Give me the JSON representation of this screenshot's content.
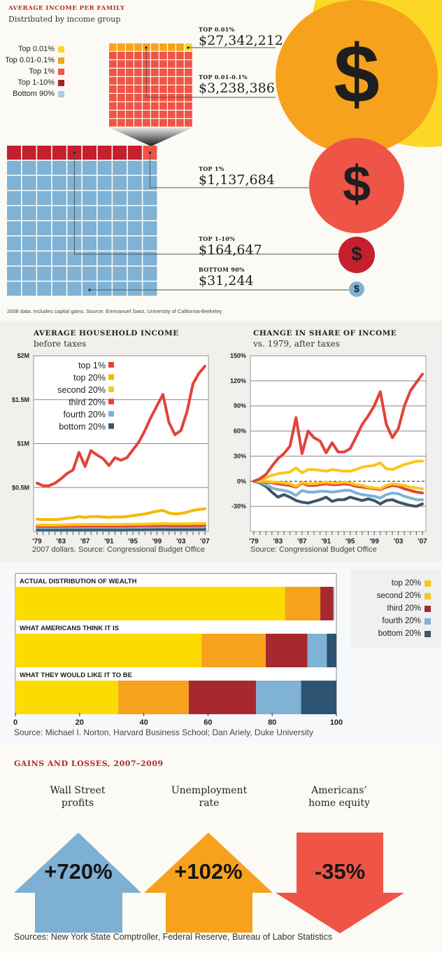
{
  "section1": {
    "title": "AVERAGE INCOME PER FAMILY",
    "subtitle": "Distributed by income group",
    "legend": [
      {
        "label": "Top 0.01%",
        "color": "#fbd826"
      },
      {
        "label": "Top 0.01-0.1%",
        "color": "#f7a21c"
      },
      {
        "label": "Top 1%",
        "color": "#ef5547"
      },
      {
        "label": "Top 1-10%",
        "color": "#b8202d"
      },
      {
        "label": "Bottom 90%",
        "color": "#7fb2d4"
      }
    ],
    "groups": [
      {
        "kicker": "TOP 0.01%",
        "value": "$27,342,212",
        "color": "#fbd826",
        "icon": "dollar-icon"
      },
      {
        "kicker": "TOP 0.01-0.1%",
        "value": "$3,238,386",
        "color": "#f7a21c",
        "icon": "dollar-icon"
      },
      {
        "kicker": "TOP 1%",
        "value": "$1,137,684",
        "color": "#ef5547",
        "icon": "dollar-icon"
      },
      {
        "kicker": "TOP 1-10%",
        "value": "$164,647",
        "color": "#c4202d",
        "icon": "dollar-icon"
      },
      {
        "kicker": "BOTTOM 90%",
        "value": "$31,244",
        "color": "#7fb2d4",
        "icon": "dollar-icon"
      }
    ],
    "dollar_glyph": "$",
    "caption": "2008 data. Includes capital gains. Source: Emmanuel Saez, University of California-Berkeley"
  },
  "chart_data": [
    {
      "type": "line",
      "title": "AVERAGE HOUSEHOLD INCOME",
      "subtitle": "before taxes",
      "caption": "2007 dollars. Source: Congressional Budget Office",
      "xlabel": "",
      "ylabel": "",
      "x": [
        1979,
        1980,
        1981,
        1982,
        1983,
        1984,
        1985,
        1986,
        1987,
        1988,
        1989,
        1990,
        1991,
        1992,
        1993,
        1994,
        1995,
        1996,
        1997,
        1998,
        1999,
        2000,
        2001,
        2002,
        2003,
        2004,
        2005,
        2006,
        2007
      ],
      "xticks": [
        "'79",
        "'83",
        "'87",
        "'91",
        "'95",
        "'99",
        "'03",
        "'07"
      ],
      "xtick_years": [
        1979,
        1983,
        1987,
        1991,
        1995,
        1999,
        2003,
        2007
      ],
      "yticks": [
        "$0.5M",
        "$1M",
        "$1.5M",
        "$2M"
      ],
      "ytick_values": [
        0.5,
        1,
        1.5,
        2
      ],
      "ylim": [
        0,
        2
      ],
      "grid": true,
      "legend_position": "top-left",
      "series": [
        {
          "name": "top 1%",
          "color": "#e0443a",
          "values": [
            0.55,
            0.52,
            0.52,
            0.55,
            0.6,
            0.66,
            0.7,
            0.9,
            0.74,
            0.92,
            0.87,
            0.83,
            0.75,
            0.84,
            0.81,
            0.84,
            0.93,
            1.02,
            1.15,
            1.3,
            1.43,
            1.56,
            1.24,
            1.1,
            1.15,
            1.36,
            1.68,
            1.8,
            1.88
          ]
        },
        {
          "name": "top 20%",
          "color": "#f5b800",
          "values": [
            0.14,
            0.135,
            0.135,
            0.135,
            0.14,
            0.15,
            0.155,
            0.17,
            0.16,
            0.17,
            0.17,
            0.165,
            0.16,
            0.165,
            0.165,
            0.17,
            0.18,
            0.19,
            0.2,
            0.215,
            0.23,
            0.24,
            0.21,
            0.2,
            0.205,
            0.22,
            0.24,
            0.25,
            0.26
          ]
        },
        {
          "name": "second 20%",
          "color": "#fcc619",
          "values": [
            0.075,
            0.074,
            0.074,
            0.074,
            0.075,
            0.077,
            0.078,
            0.08,
            0.079,
            0.08,
            0.08,
            0.08,
            0.079,
            0.08,
            0.08,
            0.081,
            0.082,
            0.083,
            0.084,
            0.086,
            0.088,
            0.09,
            0.088,
            0.087,
            0.087,
            0.088,
            0.089,
            0.09,
            0.09
          ]
        },
        {
          "name": "third 20%",
          "color": "#e0443a",
          "values": [
            0.06,
            0.059,
            0.059,
            0.059,
            0.06,
            0.061,
            0.062,
            0.063,
            0.062,
            0.063,
            0.063,
            0.063,
            0.062,
            0.062,
            0.062,
            0.063,
            0.064,
            0.065,
            0.066,
            0.067,
            0.068,
            0.069,
            0.068,
            0.067,
            0.067,
            0.067,
            0.068,
            0.068,
            0.069
          ]
        },
        {
          "name": "fourth 20%",
          "color": "#7fb2d4",
          "values": [
            0.045,
            0.044,
            0.044,
            0.044,
            0.045,
            0.046,
            0.046,
            0.047,
            0.046,
            0.047,
            0.047,
            0.047,
            0.046,
            0.046,
            0.046,
            0.047,
            0.048,
            0.048,
            0.049,
            0.05,
            0.051,
            0.051,
            0.05,
            0.05,
            0.05,
            0.05,
            0.05,
            0.051,
            0.051
          ]
        },
        {
          "name": "bottom 20%",
          "color": "#3d5468",
          "values": [
            0.02,
            0.02,
            0.02,
            0.019,
            0.019,
            0.02,
            0.02,
            0.02,
            0.02,
            0.02,
            0.021,
            0.021,
            0.02,
            0.02,
            0.02,
            0.021,
            0.022,
            0.022,
            0.023,
            0.023,
            0.024,
            0.024,
            0.023,
            0.023,
            0.023,
            0.023,
            0.024,
            0.024,
            0.024
          ]
        }
      ]
    },
    {
      "type": "line",
      "title": "CHANGE IN SHARE OF INCOME",
      "subtitle": "vs. 1979, after taxes",
      "caption": "Source: Congressional Budget Office",
      "xlabel": "",
      "ylabel": "",
      "x": [
        1979,
        1980,
        1981,
        1982,
        1983,
        1984,
        1985,
        1986,
        1987,
        1988,
        1989,
        1990,
        1991,
        1992,
        1993,
        1994,
        1995,
        1996,
        1997,
        1998,
        1999,
        2000,
        2001,
        2002,
        2003,
        2004,
        2005,
        2006,
        2007
      ],
      "xticks": [
        "'79",
        "'83",
        "'87",
        "'91",
        "'95",
        "'99",
        "'03",
        "'07"
      ],
      "xtick_years": [
        1979,
        1983,
        1987,
        1991,
        1995,
        1999,
        2003,
        2007
      ],
      "yticks": [
        "-30%",
        "0%",
        "30%",
        "60%",
        "90%",
        "120%",
        "150%"
      ],
      "ytick_values": [
        -30,
        0,
        30,
        60,
        90,
        120,
        150
      ],
      "ylim": [
        -60,
        150
      ],
      "grid": true,
      "zero_line": "dashed",
      "series": [
        {
          "name": "top 1%",
          "color": "#e0443a",
          "values": [
            0,
            3,
            8,
            18,
            27,
            33,
            42,
            76,
            33,
            60,
            52,
            48,
            34,
            46,
            35,
            35,
            39,
            53,
            68,
            78,
            90,
            107,
            68,
            52,
            63,
            90,
            108,
            118,
            128
          ]
        },
        {
          "name": "top 20%",
          "color": "#fcc619",
          "values": [
            0,
            2,
            4,
            7,
            9,
            10,
            11,
            16,
            10,
            14,
            14,
            13,
            12,
            14,
            13,
            12,
            12,
            14,
            17,
            18,
            19,
            22,
            15,
            14,
            17,
            20,
            22,
            24,
            24
          ]
        },
        {
          "name": "second 20%",
          "color": "#fcc619",
          "values": [
            0,
            0,
            0,
            -1,
            -1,
            -2,
            -3,
            -6,
            -1,
            -3,
            -3,
            -2,
            -1,
            -2,
            -2,
            -1,
            -2,
            -4,
            -5,
            -7,
            -8,
            -9,
            -5,
            -3,
            -4,
            -5,
            -7,
            -8,
            -9
          ]
        },
        {
          "name": "third 20%",
          "color": "#e0443a",
          "values": [
            0,
            0,
            -1,
            -2,
            -3,
            -4,
            -5,
            -7,
            -2,
            -5,
            -5,
            -4,
            -3,
            -4,
            -4,
            -3,
            -4,
            -6,
            -7,
            -8,
            -9,
            -10,
            -7,
            -5,
            -6,
            -9,
            -11,
            -13,
            -14
          ]
        },
        {
          "name": "fourth 20%",
          "color": "#7fb2d4",
          "values": [
            0,
            -1,
            -4,
            -8,
            -10,
            -11,
            -13,
            -17,
            -11,
            -13,
            -13,
            -12,
            -12,
            -13,
            -12,
            -11,
            -11,
            -14,
            -16,
            -17,
            -18,
            -20,
            -16,
            -14,
            -15,
            -18,
            -20,
            -22,
            -22
          ]
        },
        {
          "name": "bottom 20%",
          "color": "#3d5468",
          "values": [
            0,
            -2,
            -6,
            -13,
            -19,
            -16,
            -19,
            -23,
            -25,
            -26,
            -24,
            -22,
            -19,
            -24,
            -22,
            -22,
            -19,
            -21,
            -23,
            -21,
            -23,
            -27,
            -23,
            -22,
            -25,
            -27,
            -29,
            -30,
            -27
          ]
        }
      ]
    },
    {
      "type": "bar",
      "orientation": "horizontal-stacked",
      "title": "",
      "caption": "Source: Michael I. Norton, Harvard Business School; Dan Ariely, Duke University",
      "xlim": [
        0,
        100
      ],
      "xticks": [
        "0",
        "20",
        "40",
        "60",
        "80",
        "100"
      ],
      "xtick_values": [
        0,
        20,
        40,
        60,
        80,
        100
      ],
      "legend_position": "right",
      "categories": [
        "ACTUAL DISTRIBUTION OF WEALTH",
        "WHAT AMERICANS THINK IT IS",
        "WHAT THEY WOULD LIKE IT TO BE"
      ],
      "series": [
        {
          "name": "top 20%",
          "color": "#fcdc00",
          "values": [
            84,
            58,
            32
          ]
        },
        {
          "name": "second 20%",
          "color": "#f7a21c",
          "values": [
            11,
            20,
            22
          ]
        },
        {
          "name": "third 20%",
          "color": "#a8282f",
          "values": [
            4,
            13,
            21
          ]
        },
        {
          "name": "fourth 20%",
          "color": "#7fb2d4",
          "values": [
            0.2,
            6,
            14
          ]
        },
        {
          "name": "bottom 20%",
          "color": "#2c5472",
          "values": [
            0.1,
            3,
            11
          ]
        }
      ]
    }
  ],
  "section4": {
    "title": "GAINS AND LOSSES, 2007–2009",
    "items": [
      {
        "label_line1": "Wall Street",
        "label_line2": "profits",
        "value": "+720%",
        "direction": "up",
        "color": "#7db0d3"
      },
      {
        "label_line1": "Unemployment",
        "label_line2": "rate",
        "value": "+102%",
        "direction": "up",
        "color": "#f7a21c"
      },
      {
        "label_line1": "Americans’",
        "label_line2": "home equity",
        "value": "-35%",
        "direction": "down",
        "color": "#ef5547"
      }
    ],
    "caption": "Sources: New York State Comptroller, Federal Reserve, Bureau of Labor Statistics"
  },
  "accent_color": "#b22a2a"
}
